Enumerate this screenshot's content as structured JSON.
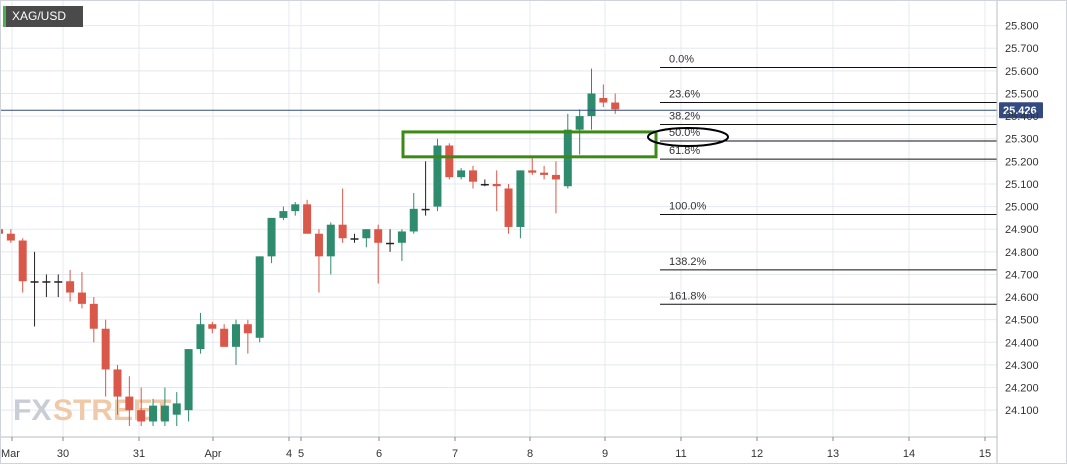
{
  "symbol": "XAG/USD",
  "current_price": "25.426",
  "watermark": {
    "text_a": "FX",
    "text_b": "STREET"
  },
  "colors": {
    "up": "#2e8b6e",
    "down": "#d9584a",
    "grid": "#e5e8ef",
    "price_line": "#334a80",
    "price_tag": "#334a80",
    "zone": "#3c8a16",
    "fib_line": "#111111"
  },
  "chart_data": {
    "type": "candlestick",
    "title": "",
    "xlabel": "",
    "ylabel": "",
    "ylim": [
      24.03,
      25.9
    ],
    "grid": true,
    "y_ticks": [
      "25.800",
      "25.700",
      "25.600",
      "25.500",
      "25.400",
      "25.300",
      "25.200",
      "25.100",
      "25.000",
      "24.900",
      "24.800",
      "24.700",
      "24.600",
      "24.500",
      "24.400",
      "24.300",
      "24.200",
      "24.100"
    ],
    "x_ticks": [
      "Mar",
      "30",
      "31",
      "Apr",
      "4",
      "5",
      "6",
      "7",
      "8",
      "9",
      "11",
      "12",
      "13",
      "14",
      "15"
    ],
    "candles": [
      [
        24.9,
        24.92,
        24.84,
        24.88
      ],
      [
        24.88,
        24.9,
        24.84,
        24.85
      ],
      [
        24.85,
        24.86,
        24.62,
        24.67
      ],
      [
        24.67,
        24.8,
        24.47,
        24.67
      ],
      [
        24.67,
        24.7,
        24.6,
        24.67
      ],
      [
        24.67,
        24.7,
        24.6,
        24.67
      ],
      [
        24.67,
        24.72,
        24.58,
        24.62
      ],
      [
        24.62,
        24.71,
        24.55,
        24.57
      ],
      [
        24.57,
        24.6,
        24.4,
        24.46
      ],
      [
        24.46,
        24.5,
        24.16,
        24.28
      ],
      [
        24.28,
        24.3,
        24.08,
        24.16
      ],
      [
        24.16,
        24.25,
        24.03,
        24.1
      ],
      [
        24.1,
        24.2,
        24.03,
        24.05
      ],
      [
        24.05,
        24.15,
        24.03,
        24.12
      ],
      [
        24.05,
        24.2,
        24.03,
        24.12
      ],
      [
        24.08,
        24.18,
        24.03,
        24.13
      ],
      [
        24.1,
        24.37,
        24.05,
        24.37
      ],
      [
        24.37,
        24.53,
        24.35,
        24.48
      ],
      [
        24.48,
        24.49,
        24.44,
        24.46
      ],
      [
        24.46,
        24.48,
        24.38,
        24.38
      ],
      [
        24.38,
        24.5,
        24.3,
        24.48
      ],
      [
        24.48,
        24.5,
        24.35,
        24.44
      ],
      [
        24.42,
        24.78,
        24.4,
        24.78
      ],
      [
        24.78,
        24.95,
        24.75,
        24.95
      ],
      [
        24.95,
        25.0,
        24.94,
        24.98
      ],
      [
        24.98,
        25.02,
        24.96,
        25.01
      ],
      [
        25.01,
        25.03,
        24.88,
        24.88
      ],
      [
        24.88,
        24.9,
        24.62,
        24.78
      ],
      [
        24.78,
        24.93,
        24.7,
        24.92
      ],
      [
        24.92,
        25.08,
        24.84,
        24.86
      ],
      [
        24.86,
        24.88,
        24.84,
        24.86
      ],
      [
        24.86,
        24.9,
        24.82,
        24.9
      ],
      [
        24.9,
        24.92,
        24.66,
        24.84
      ],
      [
        24.84,
        24.9,
        24.8,
        24.84
      ],
      [
        24.84,
        24.9,
        24.76,
        24.89
      ],
      [
        24.89,
        25.06,
        24.88,
        24.99
      ],
      [
        24.99,
        25.2,
        24.96,
        24.99
      ],
      [
        25.0,
        25.3,
        24.98,
        25.27
      ],
      [
        25.27,
        25.28,
        25.12,
        25.13
      ],
      [
        25.13,
        25.17,
        25.12,
        25.16
      ],
      [
        25.16,
        25.18,
        25.08,
        25.11
      ],
      [
        25.1,
        25.12,
        25.09,
        25.1
      ],
      [
        25.1,
        25.16,
        24.98,
        25.09
      ],
      [
        25.08,
        25.1,
        24.88,
        24.91
      ],
      [
        24.91,
        25.16,
        24.86,
        25.16
      ],
      [
        25.16,
        25.22,
        25.14,
        25.15
      ],
      [
        25.15,
        25.18,
        25.12,
        25.14
      ],
      [
        25.14,
        25.2,
        24.97,
        25.12
      ],
      [
        25.09,
        25.41,
        25.08,
        25.34
      ],
      [
        25.34,
        25.43,
        25.23,
        25.4
      ],
      [
        25.4,
        25.61,
        25.34,
        25.5
      ],
      [
        25.48,
        25.54,
        25.44,
        25.46
      ],
      [
        25.46,
        25.5,
        25.41,
        25.43
      ]
    ],
    "fibonacci": [
      {
        "label": "0.0%",
        "value": 25.615
      },
      {
        "label": "23.6%",
        "value": 25.46
      },
      {
        "label": "38.2%",
        "value": 25.363
      },
      {
        "label": "50.0%",
        "value": 25.29
      },
      {
        "label": "61.8%",
        "value": 25.21
      },
      {
        "label": "100.0%",
        "value": 24.965
      },
      {
        "label": "138.2%",
        "value": 24.72
      },
      {
        "label": "161.8%",
        "value": 24.568
      }
    ],
    "highlight_zone": {
      "y_high": 25.33,
      "y_low": 25.22
    }
  }
}
